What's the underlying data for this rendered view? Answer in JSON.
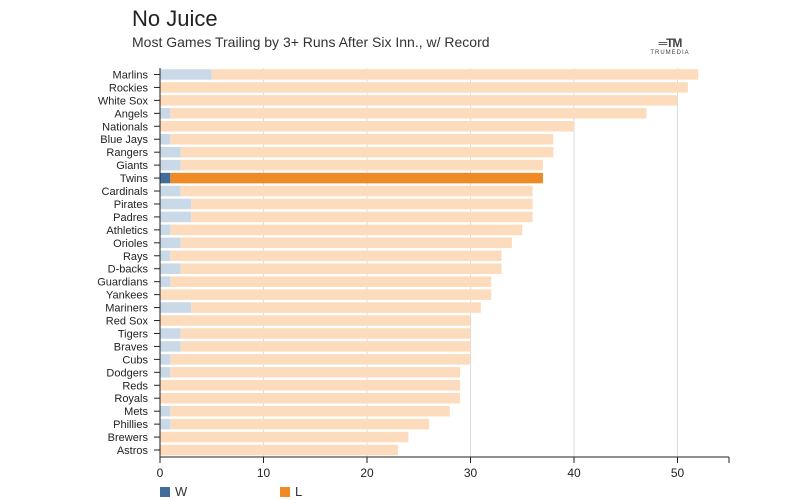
{
  "header": {
    "title": "No Juice",
    "subtitle": "Most Games Trailing by 3+ Runs After Six Inn., w/ Record",
    "logo_text": "TRUMEDIA"
  },
  "colors": {
    "w_bar": "#c9d9e7",
    "l_bar": "#fcdcbd",
    "w_highlight": "#3f6e9c",
    "l_highlight": "#f08a24",
    "grid": "#dddddd"
  },
  "legend": [
    {
      "label": "W",
      "color": "#3f6e9c"
    },
    {
      "label": "L",
      "color": "#f08a24"
    }
  ],
  "chart_data": {
    "type": "bar",
    "orientation": "horizontal",
    "stacked": true,
    "title": "No Juice",
    "subtitle": "Most Games Trailing by 3+ Runs After Six Inn., w/ Record",
    "xlabel": "",
    "ylabel": "",
    "xlim": [
      0,
      55
    ],
    "xticks": [
      0,
      10,
      20,
      30,
      40,
      50
    ],
    "highlight": "Twins",
    "categories": [
      "Marlins",
      "Rockies",
      "White Sox",
      "Angels",
      "Nationals",
      "Blue Jays",
      "Rangers",
      "Giants",
      "Twins",
      "Cardinals",
      "Pirates",
      "Padres",
      "Athletics",
      "Orioles",
      "Rays",
      "D-backs",
      "Guardians",
      "Yankees",
      "Mariners",
      "Red Sox",
      "Tigers",
      "Braves",
      "Cubs",
      "Dodgers",
      "Reds",
      "Royals",
      "Mets",
      "Phillies",
      "Brewers",
      "Astros"
    ],
    "series": [
      {
        "name": "W",
        "values": [
          5,
          0,
          0,
          1,
          0,
          1,
          2,
          2,
          1,
          2,
          3,
          3,
          1,
          2,
          1,
          2,
          1,
          0,
          3,
          0,
          2,
          2,
          1,
          1,
          0,
          0,
          1,
          1,
          0,
          0
        ]
      },
      {
        "name": "L",
        "values": [
          47,
          51,
          50,
          46,
          40,
          37,
          36,
          35,
          36,
          34,
          33,
          33,
          34,
          32,
          32,
          31,
          31,
          32,
          28,
          30,
          28,
          28,
          29,
          28,
          29,
          29,
          27,
          25,
          24,
          23
        ]
      }
    ]
  }
}
